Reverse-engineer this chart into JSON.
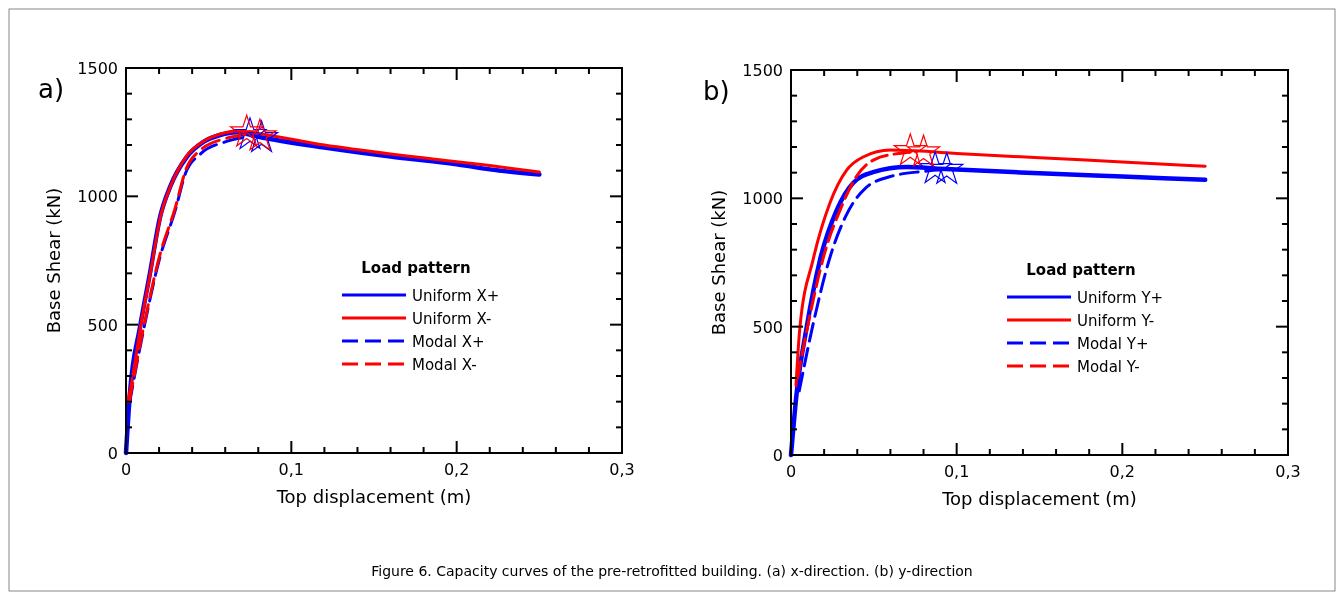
{
  "chart_data": [
    {
      "type": "line",
      "title": "a)",
      "xlabel": "Top displacement (m)",
      "ylabel": "Base Shear (kN)",
      "legend_title": "Load pattern",
      "legend": "center",
      "grid": false,
      "xlim": [
        0,
        0.3
      ],
      "xticks": [
        0,
        {
          "value": 0.02,
          "label": null
        },
        {
          "value": 0.04,
          "label": null
        },
        {
          "value": 0.06,
          "label": null
        },
        {
          "value": 0.08,
          "label": null
        },
        {
          "value": 0.1,
          "label": "0,1"
        },
        {
          "value": 0.12,
          "label": null
        },
        {
          "value": 0.14,
          "label": null
        },
        {
          "value": 0.16,
          "label": null
        },
        {
          "value": 0.18,
          "label": null
        },
        {
          "value": 0.2,
          "label": "0,2"
        },
        {
          "value": 0.22,
          "label": null
        },
        {
          "value": 0.24,
          "label": null
        },
        {
          "value": 0.26,
          "label": null
        },
        {
          "value": 0.28,
          "label": null
        },
        {
          "value": 0.3,
          "label": "0,3"
        }
      ],
      "ylim": [
        0,
        1500
      ],
      "yticks": [
        0,
        {
          "value": 100,
          "label": null
        },
        {
          "value": 200,
          "label": null
        },
        {
          "value": 300,
          "label": null
        },
        {
          "value": 400,
          "label": null
        },
        500,
        {
          "value": 600,
          "label": null
        },
        {
          "value": 700,
          "label": null
        },
        {
          "value": 800,
          "label": null
        },
        {
          "value": 900,
          "label": null
        },
        1000,
        {
          "value": 1100,
          "label": null
        },
        {
          "value": 1200,
          "label": null
        },
        {
          "value": 1300,
          "label": null
        },
        {
          "value": 1400,
          "label": null
        },
        1500
      ],
      "series": [
        {
          "name": "Uniform X+",
          "color": "#0000ff",
          "line_style": "solid",
          "x": [
            0,
            0.0024,
            0.0085,
            0.0145,
            0.0206,
            0.0266,
            0.0367,
            0.0466,
            0.0569,
            0.067,
            0.08,
            0.12,
            0.16,
            0.2,
            0.22,
            0.25
          ],
          "values": [
            0,
            234,
            491,
            701,
            919,
            1036,
            1153,
            1211,
            1239,
            1250,
            1232,
            1190,
            1155,
            1125,
            1105,
            1085
          ]
        },
        {
          "name": "Uniform X-",
          "color": "#ff0000",
          "line_style": "solid",
          "x": [
            0.001,
            0.003,
            0.009,
            0.015,
            0.021,
            0.027,
            0.037,
            0.047,
            0.057,
            0.068,
            0.08,
            0.12,
            0.16,
            0.2,
            0.22,
            0.25
          ],
          "values": [
            200,
            260,
            500,
            710,
            925,
            1040,
            1160,
            1215,
            1243,
            1255,
            1245,
            1200,
            1165,
            1135,
            1120,
            1095
          ]
        },
        {
          "name": "Modal X+",
          "color": "#0000ff",
          "line_style": "dashed",
          "x": [
            0.002,
            0.01,
            0.02,
            0.03,
            0.036,
            0.045,
            0.06,
            0.07
          ],
          "values": [
            190,
            460,
            750,
            950,
            1090,
            1165,
            1212,
            1228
          ]
        },
        {
          "name": "Modal X-",
          "color": "#ff0000",
          "line_style": "dashed",
          "x": [
            0.002,
            0.01,
            0.02,
            0.03,
            0.036,
            0.045,
            0.06,
            0.072
          ],
          "values": [
            200,
            470,
            760,
            960,
            1100,
            1180,
            1225,
            1240
          ]
        },
        {
          "type": "scatter",
          "marker": "star",
          "color": "#0000ff",
          "x": [
            0.075,
            0.082
          ],
          "values": [
            1240,
            1228
          ]
        },
        {
          "type": "scatter",
          "marker": "star",
          "color": "#ff0000",
          "x": [
            0.073,
            0.081
          ],
          "values": [
            1250,
            1235
          ]
        }
      ],
      "annotations": [
        "Figure 6. Capacity curves of the pre-retrofitted building. (a) x-direction. (b) y-direction"
      ]
    },
    {
      "type": "line",
      "title": "b)",
      "xlabel": "Top displacement (m)",
      "ylabel": "Base Shear (kN)",
      "legend_title": "Load pattern",
      "legend": "center",
      "grid": false,
      "xlim": [
        0,
        0.3
      ],
      "xticks": [
        0,
        {
          "value": 0.02,
          "label": null
        },
        {
          "value": 0.04,
          "label": null
        },
        {
          "value": 0.06,
          "label": null
        },
        {
          "value": 0.08,
          "label": null
        },
        {
          "value": 0.1,
          "label": "0,1"
        },
        {
          "value": 0.12,
          "label": null
        },
        {
          "value": 0.14,
          "label": null
        },
        {
          "value": 0.16,
          "label": null
        },
        {
          "value": 0.18,
          "label": null
        },
        {
          "value": 0.2,
          "label": "0,2"
        },
        {
          "value": 0.22,
          "label": null
        },
        {
          "value": 0.24,
          "label": null
        },
        {
          "value": 0.26,
          "label": null
        },
        {
          "value": 0.28,
          "label": null
        },
        {
          "value": 0.3,
          "label": "0,3"
        }
      ],
      "ylim": [
        0,
        1500
      ],
      "yticks": [
        0,
        {
          "value": 100,
          "label": null
        },
        {
          "value": 200,
          "label": null
        },
        {
          "value": 300,
          "label": null
        },
        {
          "value": 400,
          "label": null
        },
        500,
        {
          "value": 600,
          "label": null
        },
        {
          "value": 700,
          "label": null
        },
        {
          "value": 800,
          "label": null
        },
        {
          "value": 900,
          "label": null
        },
        1000,
        {
          "value": 1100,
          "label": null
        },
        {
          "value": 1200,
          "label": null
        },
        {
          "value": 1300,
          "label": null
        },
        {
          "value": 1400,
          "label": null
        },
        1500
      ],
      "series": [
        {
          "name": "Uniform Y+",
          "color": "#0000ff",
          "line_style": "solid",
          "x": [
            0,
            0.0034,
            0.0095,
            0.0175,
            0.0276,
            0.0375,
            0.0495,
            0.07,
            0.09,
            0.15,
            0.2,
            0.25
          ],
          "values": [
            0,
            241,
            499,
            760,
            954,
            1060,
            1102,
            1122,
            1115,
            1098,
            1085,
            1072
          ]
        },
        {
          "name": "Uniform Y-",
          "color": "#ff0000",
          "line_style": "solid",
          "x": [
            0.003,
            0.0054,
            0.0133,
            0.0235,
            0.0336,
            0.0435,
            0.06,
            0.075,
            0.1,
            0.15,
            0.2,
            0.25
          ],
          "values": [
            270,
            499,
            760,
            982,
            1110,
            1161,
            1188,
            1185,
            1175,
            1158,
            1142,
            1125
          ]
        },
        {
          "name": "Modal Y+",
          "color": "#0000ff",
          "line_style": "dashed",
          "x": [
            0.005,
            0.013,
            0.024,
            0.033,
            0.045,
            0.06,
            0.08,
            0.092
          ],
          "values": [
            250,
            500,
            780,
            930,
            1040,
            1085,
            1105,
            1112
          ]
        },
        {
          "name": "Modal Y-",
          "color": "#ff0000",
          "line_style": "dashed",
          "x": [
            0.004,
            0.01,
            0.02,
            0.03,
            0.04,
            0.05,
            0.065,
            0.072
          ],
          "values": [
            300,
            500,
            780,
            960,
            1090,
            1150,
            1175,
            1180
          ]
        },
        {
          "type": "scatter",
          "marker": "star",
          "color": "#0000ff",
          "x": [
            0.087,
            0.094
          ],
          "values": [
            1115,
            1112
          ]
        },
        {
          "type": "scatter",
          "marker": "star",
          "color": "#ff0000",
          "x": [
            0.072,
            0.08
          ],
          "values": [
            1185,
            1180
          ]
        }
      ]
    }
  ]
}
